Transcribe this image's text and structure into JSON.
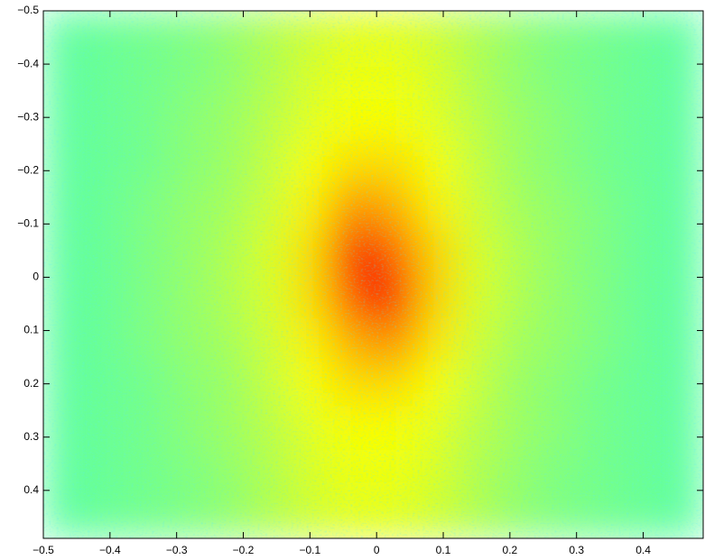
{
  "chart_data": {
    "type": "heatmap",
    "colormap": "jet",
    "clim": [
      0,
      1
    ],
    "xlim": [
      -0.5,
      0.49
    ],
    "ylim": [
      -0.5,
      0.49
    ],
    "y_reversed": true,
    "xticks": [
      {
        "value": -0.5,
        "label": "−0.5"
      },
      {
        "value": -0.4,
        "label": "−0.4"
      },
      {
        "value": -0.3,
        "label": "−0.3"
      },
      {
        "value": -0.2,
        "label": "−0.2"
      },
      {
        "value": -0.1,
        "label": "−0.1"
      },
      0,
      0.1,
      0.2,
      0.3,
      0.4
    ],
    "yticks": [
      {
        "value": -0.5,
        "label": "−0.5"
      },
      {
        "value": -0.4,
        "label": "−0.4"
      },
      {
        "value": -0.3,
        "label": "−0.3"
      },
      {
        "value": -0.2,
        "label": "−0.2"
      },
      {
        "value": -0.1,
        "label": "−0.1"
      },
      0,
      0.1,
      0.2,
      0.3,
      0.4
    ],
    "grid": false,
    "z": [
      [
        0.47,
        0.48,
        0.49,
        0.5,
        0.52,
        0.55,
        0.58,
        0.6,
        0.6,
        0.58,
        0.55,
        0.52,
        0.5,
        0.49,
        0.48,
        0.47
      ],
      [
        0.47,
        0.48,
        0.49,
        0.5,
        0.52,
        0.55,
        0.59,
        0.61,
        0.61,
        0.59,
        0.55,
        0.52,
        0.5,
        0.49,
        0.48,
        0.47
      ],
      [
        0.47,
        0.48,
        0.49,
        0.51,
        0.53,
        0.56,
        0.6,
        0.62,
        0.62,
        0.6,
        0.56,
        0.53,
        0.51,
        0.49,
        0.48,
        0.47
      ],
      [
        0.47,
        0.48,
        0.49,
        0.51,
        0.53,
        0.57,
        0.62,
        0.66,
        0.66,
        0.62,
        0.57,
        0.53,
        0.51,
        0.49,
        0.48,
        0.47
      ],
      [
        0.47,
        0.48,
        0.5,
        0.52,
        0.54,
        0.58,
        0.64,
        0.74,
        0.71,
        0.64,
        0.58,
        0.54,
        0.52,
        0.5,
        0.48,
        0.47
      ],
      [
        0.47,
        0.48,
        0.5,
        0.52,
        0.55,
        0.59,
        0.66,
        0.88,
        0.78,
        0.67,
        0.59,
        0.55,
        0.52,
        0.5,
        0.48,
        0.47
      ],
      [
        0.47,
        0.48,
        0.5,
        0.52,
        0.55,
        0.59,
        0.66,
        0.8,
        0.88,
        0.67,
        0.59,
        0.55,
        0.52,
        0.5,
        0.48,
        0.47
      ],
      [
        0.47,
        0.48,
        0.5,
        0.52,
        0.54,
        0.58,
        0.64,
        0.71,
        0.74,
        0.65,
        0.58,
        0.54,
        0.52,
        0.5,
        0.48,
        0.47
      ],
      [
        0.47,
        0.48,
        0.49,
        0.51,
        0.53,
        0.57,
        0.62,
        0.66,
        0.66,
        0.62,
        0.57,
        0.53,
        0.51,
        0.49,
        0.48,
        0.47
      ],
      [
        0.47,
        0.48,
        0.49,
        0.51,
        0.53,
        0.56,
        0.6,
        0.62,
        0.62,
        0.6,
        0.56,
        0.53,
        0.51,
        0.49,
        0.48,
        0.47
      ],
      [
        0.47,
        0.48,
        0.49,
        0.5,
        0.52,
        0.55,
        0.59,
        0.61,
        0.61,
        0.59,
        0.55,
        0.52,
        0.5,
        0.49,
        0.48,
        0.47
      ],
      [
        0.47,
        0.48,
        0.49,
        0.5,
        0.52,
        0.55,
        0.58,
        0.6,
        0.6,
        0.58,
        0.55,
        0.52,
        0.5,
        0.49,
        0.48,
        0.47
      ]
    ]
  }
}
